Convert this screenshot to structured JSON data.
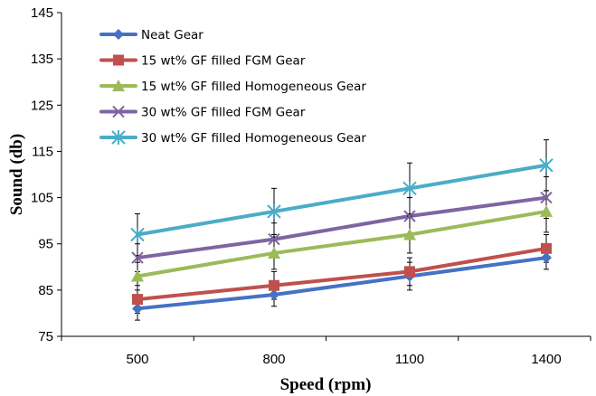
{
  "chart_data": {
    "type": "line",
    "title": "",
    "xlabel": "Speed (rpm)",
    "ylabel": "Sound (db)",
    "categories": [
      "500",
      "800",
      "1100",
      "1400"
    ],
    "ylim": [
      75,
      145
    ],
    "yticks": [
      75,
      85,
      95,
      105,
      115,
      125,
      135,
      145
    ],
    "grid": false,
    "legend_position": "top-left",
    "error_bars": true,
    "series": [
      {
        "name": "Neat Gear",
        "color": "#4472C4",
        "marker": "diamond",
        "values": [
          81,
          84,
          88,
          92
        ],
        "errors": [
          2.5,
          2.5,
          3,
          2.5
        ]
      },
      {
        "name": "15 wt% GF filled FGM Gear",
        "color": "#C0504D",
        "marker": "square",
        "values": [
          83,
          86,
          89,
          94
        ],
        "errors": [
          3,
          3,
          3,
          3
        ]
      },
      {
        "name": "15 wt% GF filled Homogeneous Gear",
        "color": "#9BBB59",
        "marker": "triangle",
        "values": [
          88,
          93,
          97,
          102
        ],
        "errors": [
          3,
          3.5,
          4,
          4.5
        ]
      },
      {
        "name": "30 wt% GF filled FGM Gear",
        "color": "#8064A2",
        "marker": "x",
        "values": [
          92,
          96,
          101,
          105
        ],
        "errors": [
          3,
          3.5,
          4,
          4.5
        ]
      },
      {
        "name": "30 wt% GF filled Homogeneous Gear",
        "color": "#4BACC6",
        "marker": "asterisk",
        "values": [
          97,
          102,
          107,
          112
        ],
        "errors": [
          4.5,
          5,
          5.5,
          5.5
        ]
      }
    ]
  }
}
